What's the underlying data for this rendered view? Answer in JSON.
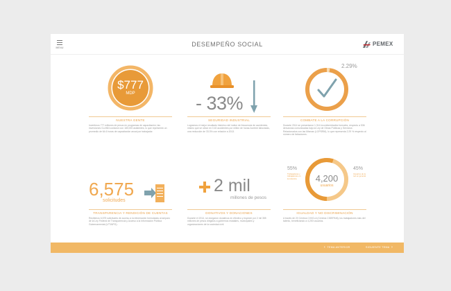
{
  "header": {
    "menu_label": "MENU",
    "title": "DESEMPEÑO SOCIAL",
    "logo_text": "PEMEX"
  },
  "cells": [
    {
      "value": "$777",
      "unit": "MDP",
      "caption": "NUESTRA GENTE",
      "text": "Invertimos 777 millones de pesos en programas de capacitación; las inversiones CLANN contaron con 180,000 asistentes, lo que representó un promedio de 64.6 horas de capacitación anual por trabajador."
    },
    {
      "value": "- 33%",
      "caption": "SEGURIDAD INDUSTRIAL",
      "text": "Logramos el mejor resultado histórico del índice de frecuencia de accidentes, mismo que se ubicó en 0.40 accidentes por millón de horas-hombre laboradas, una reducción de 33.3% con relación a 2013."
    },
    {
      "percent": "2.29%",
      "percent_value": 2.29,
      "caption": "COMBATE A LA CORRUPCIÓN",
      "text": "Durante 2014 se presentaron 1,314 inconformidades formales, respecto a 536 denuncias comunicadas bajo la Ley de Obras Públicas y Servicios Relacionados con las Mismas (LOPSRM), lo que representa 2.29 % respecto al número de licitaciones."
    },
    {
      "value": "6,575",
      "sub": "solicitudes",
      "caption": "TRANSPARENCIA Y RENDICIÓN DE CUENTAS",
      "text": "Recibimos 6,575 solicitudes de acceso a la información formuladas al amparo de la Ley Federal de Transparencia y Acceso a la Información Pública Gubernamental (LFTAIPG)."
    },
    {
      "value": "2 mil",
      "sub": "millones de pesos",
      "caption": "DONATIVOS Y DONACIONES",
      "text": "Durante el 2014, se otorgaron donativos en efectivo y especie por 2 mil 355 millones de pesos dirigidos a gobiernos estatales, municipales y organizaciones de la sociedad civil."
    },
    {
      "value": "4,200",
      "sub": "usuarios",
      "left_percent": "55%",
      "left_label": "Trabajadoras y trabajadoras en la industria",
      "right_percent": "45%",
      "right_label": "Usuarios de la red en general",
      "caption": "IGUALDAD Y NO DISCRIMINACIÓN",
      "text": "A través de 20 Centros CIVICLA (Centros CIDEPAM), los trabajadores más del talento, beneficiando a 4,200 usuarios."
    }
  ],
  "footer": {
    "prev_label": "TEMA ANTERIOR",
    "next_label": "SIGUIENTE TEMA"
  },
  "colors": {
    "accent": "#f0a850",
    "ring": "#e89a38",
    "steel": "#7fa2ad",
    "footer": "#f1b865"
  }
}
